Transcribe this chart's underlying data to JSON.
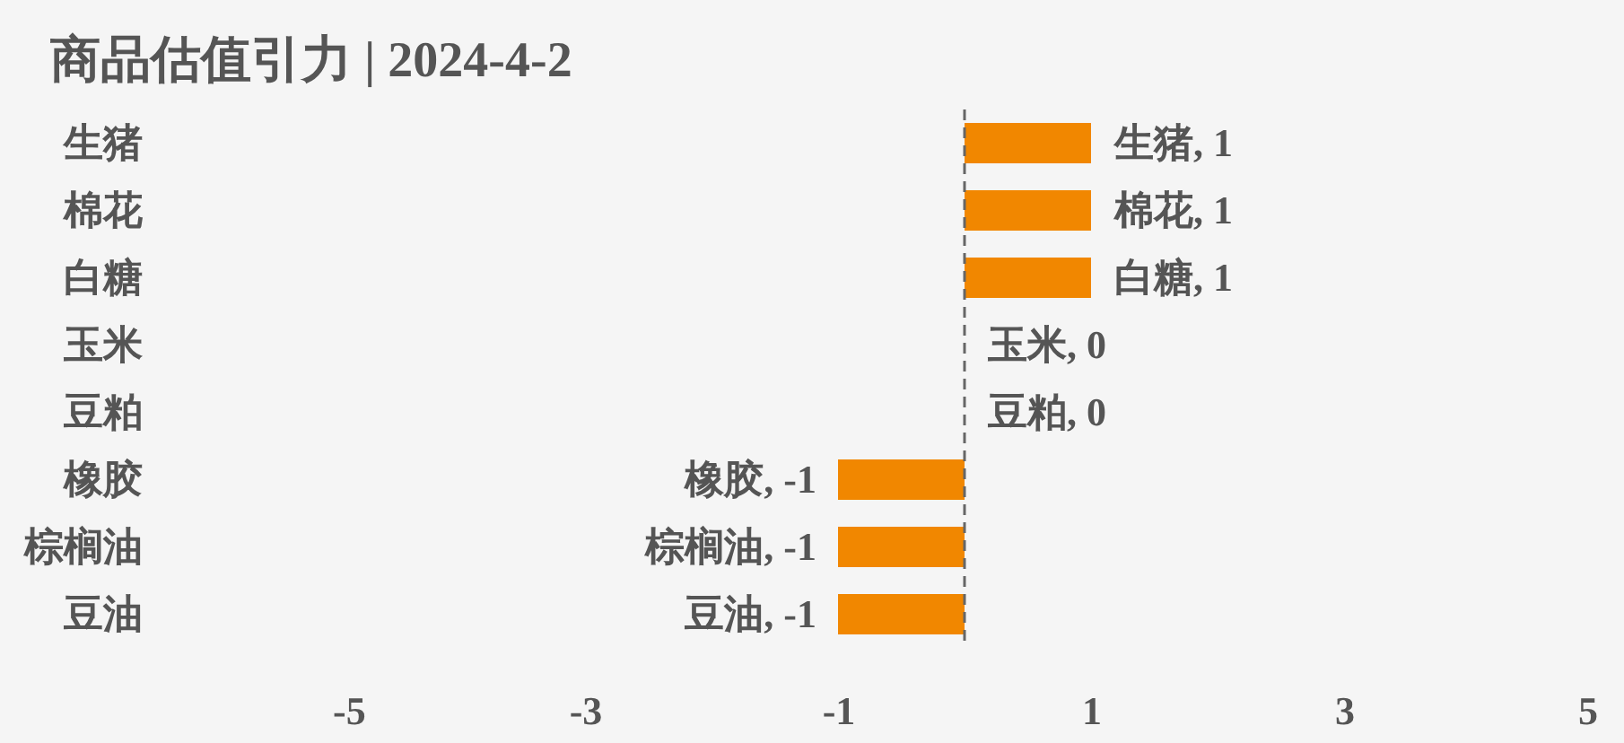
{
  "chart_data": {
    "type": "bar",
    "orientation": "horizontal",
    "title": "商品估值引力 | 2024-4-2",
    "categories": [
      "生猪",
      "棉花",
      "白糖",
      "玉米",
      "豆粕",
      "橡胶",
      "棕榈油",
      "豆油"
    ],
    "values": [
      1,
      1,
      1,
      0,
      0,
      -1,
      -1,
      -1
    ],
    "value_labels": [
      "生猪, 1",
      "棉花, 1",
      "白糖, 1",
      "玉米, 0",
      "豆粕, 0",
      "橡胶, -1",
      "棕榈油, -1",
      "豆油, -1"
    ],
    "color": "#f18700",
    "xlim": [
      -5,
      5
    ],
    "xticks": [
      -5,
      -3,
      -1,
      1,
      3,
      5
    ],
    "ref_lines": [
      {
        "axis": "x",
        "value": 0,
        "color": "#666666",
        "line_style": "dashed"
      }
    ]
  }
}
